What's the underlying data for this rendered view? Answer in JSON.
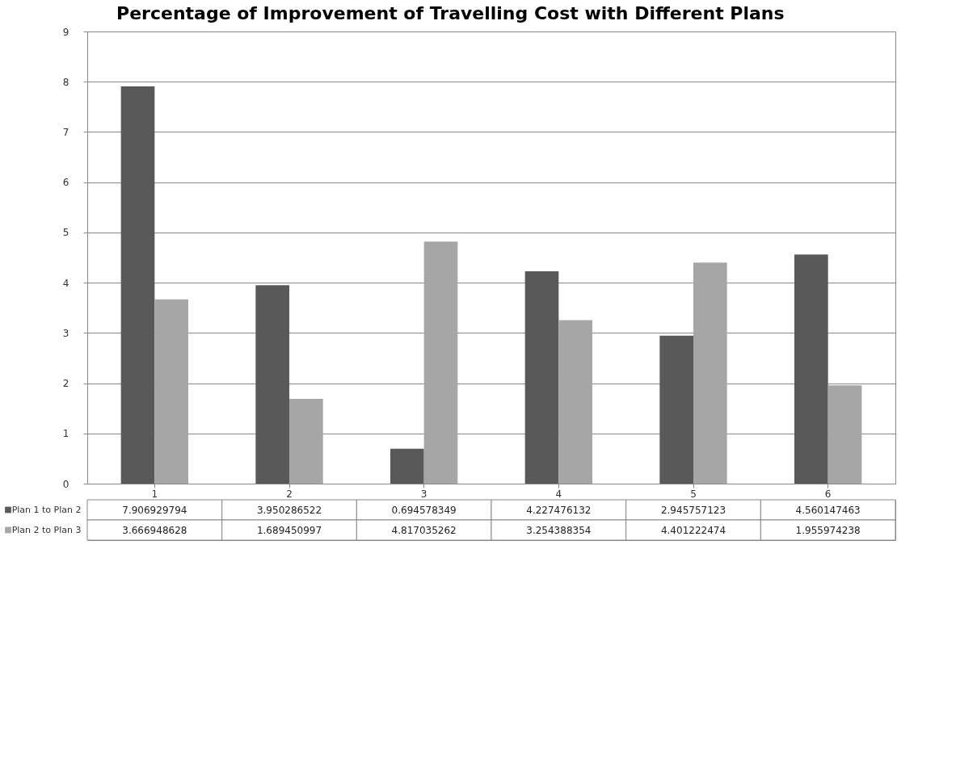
{
  "chart_data": {
    "type": "bar",
    "title": "Percentage of Improvement of Travelling Cost with Different Plans",
    "categories": [
      "1",
      "2",
      "3",
      "4",
      "5",
      "6"
    ],
    "series": [
      {
        "name": "Plan 1 to Plan 2",
        "color": "#595959",
        "values": [
          7.906929794,
          3.950286522,
          0.694578349,
          4.227476132,
          2.945757123,
          4.560147463
        ]
      },
      {
        "name": "Plan 2 to Plan 3",
        "color": "#a6a6a6",
        "values": [
          3.666948628,
          1.689450997,
          4.817035262,
          3.254388354,
          4.401222474,
          1.955974238
        ]
      }
    ],
    "ylim": [
      0,
      9
    ],
    "yticks": [
      0,
      1,
      2,
      3,
      4,
      5,
      6,
      7,
      8,
      9
    ],
    "grid": "y",
    "data_labels": true,
    "legend": "bottom"
  }
}
